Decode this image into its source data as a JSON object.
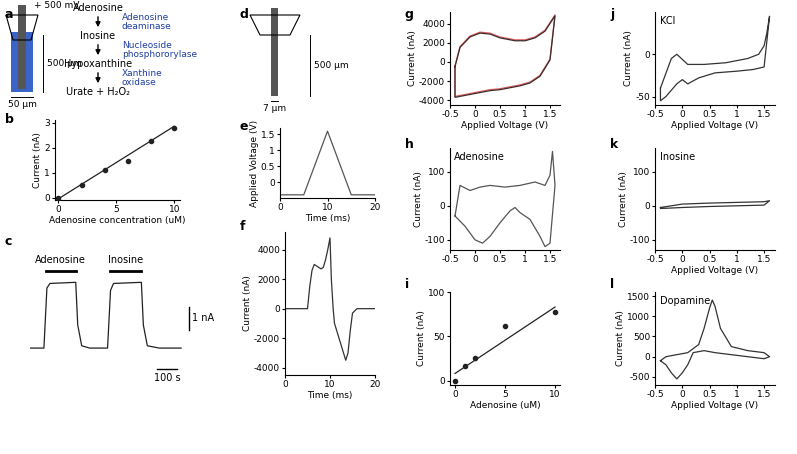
{
  "chart_data": [
    {
      "panel": "b",
      "type": "scatter",
      "x_label": "Adenosine concentration (uM)",
      "y_label": "Current (nA)",
      "xlim": [
        -0.3,
        10.5
      ],
      "ylim": [
        -0.1,
        3.1
      ],
      "xticks": [
        0,
        5,
        10
      ],
      "yticks": [
        0,
        1,
        2,
        3
      ],
      "series": [
        {
          "type": "scatter",
          "color": "#222222",
          "x": [
            0,
            2,
            4,
            6,
            8,
            10
          ],
          "values": [
            0,
            0.5,
            1.1,
            1.45,
            2.25,
            2.8
          ]
        },
        {
          "type": "line",
          "color": "#222222",
          "x": [
            0,
            10
          ],
          "values": [
            -0.05,
            2.85
          ]
        }
      ]
    },
    {
      "panel": "c",
      "type": "line",
      "tick_labels": false,
      "series": [
        {
          "color": "#222222",
          "x": [
            0,
            70,
            85,
            100,
            230,
            240,
            260,
            300,
            390,
            405,
            420,
            560,
            570,
            590,
            650,
            760
          ],
          "values": [
            0,
            0,
            2.6,
            2.8,
            2.85,
            1.0,
            0.1,
            0,
            0,
            2.5,
            2.8,
            2.85,
            1.0,
            0.1,
            0,
            0
          ]
        }
      ],
      "stimuli": [
        {
          "label": "Adenosine",
          "start": 80,
          "end": 230
        },
        {
          "label": "Inosine",
          "start": 400,
          "end": 560
        }
      ],
      "scale_bars": [
        {
          "label": "1 nA",
          "value": 1,
          "axis": "y"
        },
        {
          "label": "100 s",
          "value": 100,
          "axis": "x"
        }
      ]
    },
    {
      "panel": "e",
      "type": "line",
      "x_label": "Time (ms)",
      "y_label": "Applied Voltage (V)",
      "xlim": [
        0,
        20
      ],
      "ylim": [
        -0.5,
        1.7
      ],
      "xticks": [
        0,
        10,
        20
      ],
      "yticks": [
        0,
        0.5,
        1,
        1.5
      ],
      "series": [
        {
          "color": "#555555",
          "x": [
            0,
            5,
            10,
            15,
            20
          ],
          "values": [
            -0.4,
            -0.4,
            1.6,
            -0.4,
            -0.4
          ]
        }
      ]
    },
    {
      "panel": "f",
      "type": "line",
      "x_label": "Time (ms)",
      "y_label": "Current (nA)",
      "xlim": [
        0,
        20
      ],
      "ylim": [
        -4500,
        5200
      ],
      "xticks": [
        0,
        10,
        20
      ],
      "yticks": [
        -4000,
        -2000,
        0,
        2000,
        4000
      ],
      "series": [
        {
          "color": "#333333",
          "x": [
            0,
            5,
            5.5,
            6,
            6.5,
            7,
            8,
            8.5,
            9,
            9.5,
            10,
            10.3,
            10.7,
            11,
            12,
            13,
            13.5,
            14,
            14.5,
            15,
            16,
            20
          ],
          "values": [
            0,
            0,
            1500,
            2600,
            3000,
            2900,
            2700,
            2800,
            3300,
            4000,
            4800,
            2000,
            0,
            -1000,
            -2000,
            -3000,
            -3500,
            -3000,
            -1500,
            -300,
            0,
            0
          ]
        }
      ]
    },
    {
      "panel": "g",
      "type": "line",
      "x_label": "Applied Voltage (V)",
      "y_label": "Current (nA)",
      "xlim": [
        -0.5,
        1.7
      ],
      "ylim": [
        -4500,
        5200
      ],
      "xticks": [
        -0.5,
        0,
        0.5,
        1,
        1.5
      ],
      "yticks": [
        -4000,
        -2000,
        0,
        2000,
        4000
      ],
      "series": [
        {
          "color": "#e06060",
          "x": [
            -0.4,
            -0.3,
            -0.1,
            0.1,
            0.3,
            0.5,
            0.8,
            1.0,
            1.2,
            1.4,
            1.5,
            1.6,
            1.5,
            1.3,
            1.1,
            0.9,
            0.7,
            0.5,
            0.3,
            0.1,
            -0.1,
            -0.3,
            -0.4,
            -0.4
          ],
          "values": [
            -400,
            1600,
            2700,
            3100,
            3000,
            2600,
            2300,
            2300,
            2600,
            3300,
            4100,
            4900,
            300,
            -1400,
            -2100,
            -2400,
            -2600,
            -2800,
            -2900,
            -3100,
            -3300,
            -3500,
            -3600,
            -400
          ]
        },
        {
          "color": "#3a2a2a",
          "x": [
            -0.4,
            -0.3,
            -0.1,
            0.1,
            0.3,
            0.5,
            0.8,
            1.0,
            1.2,
            1.4,
            1.5,
            1.6,
            1.5,
            1.3,
            1.1,
            0.9,
            0.7,
            0.5,
            0.3,
            0.1,
            -0.1,
            -0.3,
            -0.4,
            -0.4
          ],
          "values": [
            -500,
            1500,
            2600,
            3000,
            2900,
            2500,
            2200,
            2200,
            2500,
            3200,
            4000,
            4800,
            200,
            -1500,
            -2200,
            -2500,
            -2700,
            -2900,
            -3000,
            -3200,
            -3400,
            -3600,
            -3700,
            -500
          ]
        }
      ]
    },
    {
      "panel": "h",
      "type": "line",
      "title": "Adenosine",
      "y_label": "Current (nA)",
      "xlim": [
        -0.5,
        1.7
      ],
      "ylim": [
        -130,
        170
      ],
      "xticks": [
        -0.5,
        0,
        0.5,
        1,
        1.5
      ],
      "yticks": [
        -100,
        0,
        100
      ],
      "series": [
        {
          "color": "#555555",
          "x": [
            -0.4,
            -0.3,
            -0.1,
            0.1,
            0.3,
            0.6,
            0.9,
            1.2,
            1.4,
            1.5,
            1.55,
            1.6,
            1.5,
            1.4,
            1.3,
            1.1,
            0.9,
            0.8,
            0.7,
            0.5,
            0.3,
            0.15,
            0,
            -0.2,
            -0.4
          ],
          "values": [
            -30,
            60,
            45,
            55,
            60,
            55,
            60,
            70,
            60,
            90,
            160,
            60,
            -110,
            -120,
            -90,
            -40,
            -20,
            -5,
            -15,
            -50,
            -90,
            -110,
            -100,
            -60,
            -30
          ]
        }
      ]
    },
    {
      "panel": "i",
      "type": "scatter",
      "x_label": "Adenosine (uM)",
      "y_label": "Current (nA)",
      "xlim": [
        -0.5,
        10.5
      ],
      "ylim": [
        -5,
        100
      ],
      "xticks": [
        0,
        5,
        10
      ],
      "yticks": [
        0,
        50,
        100
      ],
      "series": [
        {
          "type": "scatter",
          "color": "#222222",
          "x": [
            0,
            1,
            2,
            5,
            10
          ],
          "values": [
            0,
            17,
            26,
            62,
            77
          ]
        },
        {
          "type": "line",
          "color": "#222222",
          "x": [
            0,
            10
          ],
          "values": [
            8,
            83
          ]
        }
      ]
    },
    {
      "panel": "j",
      "type": "line",
      "title": "KCl",
      "x_label": "Applied Voltage (V)",
      "y_label": "Current (nA)",
      "xlim": [
        -0.5,
        1.7
      ],
      "ylim": [
        -60,
        50
      ],
      "xticks": [
        -0.5,
        0,
        0.5,
        1,
        1.5
      ],
      "yticks": [
        -50,
        0
      ],
      "series": [
        {
          "color": "#333333",
          "x": [
            -0.4,
            -0.2,
            -0.1,
            0.1,
            0.4,
            0.8,
            1.2,
            1.4,
            1.5,
            1.55,
            1.6,
            1.5,
            1.3,
            1.0,
            0.6,
            0.3,
            0.1,
            0,
            -0.1,
            -0.3,
            -0.4,
            -0.4
          ],
          "values": [
            -40,
            -5,
            0,
            -12,
            -12,
            -10,
            -5,
            0,
            10,
            25,
            45,
            -15,
            -18,
            -20,
            -22,
            -28,
            -35,
            -30,
            -35,
            -50,
            -55,
            -40
          ]
        }
      ]
    },
    {
      "panel": "k",
      "type": "line",
      "title": "Inosine",
      "x_label": "Applied Voltage (V)",
      "y_label": "Current (nA)",
      "xlim": [
        -0.5,
        1.7
      ],
      "ylim": [
        -130,
        170
      ],
      "xticks": [
        -0.5,
        0,
        0.5,
        1,
        1.5
      ],
      "yticks": [
        -100,
        0,
        100
      ],
      "series": [
        {
          "color": "#333333",
          "x": [
            -0.4,
            0,
            0.5,
            1.0,
            1.5,
            1.6,
            1.5,
            1.0,
            0.5,
            0,
            -0.4,
            -0.4
          ],
          "values": [
            -5,
            5,
            8,
            10,
            12,
            15,
            2,
            0,
            -2,
            -5,
            -8,
            -5
          ]
        }
      ]
    },
    {
      "panel": "l",
      "type": "line",
      "title": "Dopamine",
      "x_label": "Applied Voltage (V)",
      "y_label": "Current (nA)",
      "xlim": [
        -0.5,
        1.7
      ],
      "ylim": [
        -700,
        1600
      ],
      "xticks": [
        -0.5,
        0,
        0.5,
        1,
        1.5
      ],
      "yticks": [
        -500,
        0,
        500,
        1000,
        1500
      ],
      "series": [
        {
          "color": "#333333",
          "x": [
            -0.4,
            -0.3,
            -0.1,
            0.1,
            0.3,
            0.4,
            0.5,
            0.55,
            0.6,
            0.7,
            0.9,
            1.2,
            1.5,
            1.6,
            1.5,
            1.2,
            0.9,
            0.6,
            0.4,
            0.2,
            0.1,
            0,
            -0.1,
            -0.2,
            -0.3,
            -0.4
          ],
          "values": [
            -100,
            0,
            50,
            100,
            300,
            700,
            1200,
            1400,
            1250,
            700,
            250,
            150,
            100,
            0,
            -50,
            0,
            50,
            100,
            150,
            100,
            -200,
            -400,
            -550,
            -400,
            -200,
            -100
          ]
        }
      ]
    }
  ],
  "diagrams": [
    {
      "panel": "a",
      "voltage": "+ 500 mV",
      "length": "500 µm",
      "width": "50 µm",
      "pathway": [
        "Adenosine",
        "Inosine",
        "Hypoxanthine",
        "Urate + H₂O₂"
      ],
      "enzymes": [
        "Adenosine\ndeaminase",
        "Nucleoside\nphosphororylase",
        "Xanthine\noxidase"
      ]
    },
    {
      "panel": "d",
      "length": "500 µm",
      "width": "7 µm"
    }
  ]
}
